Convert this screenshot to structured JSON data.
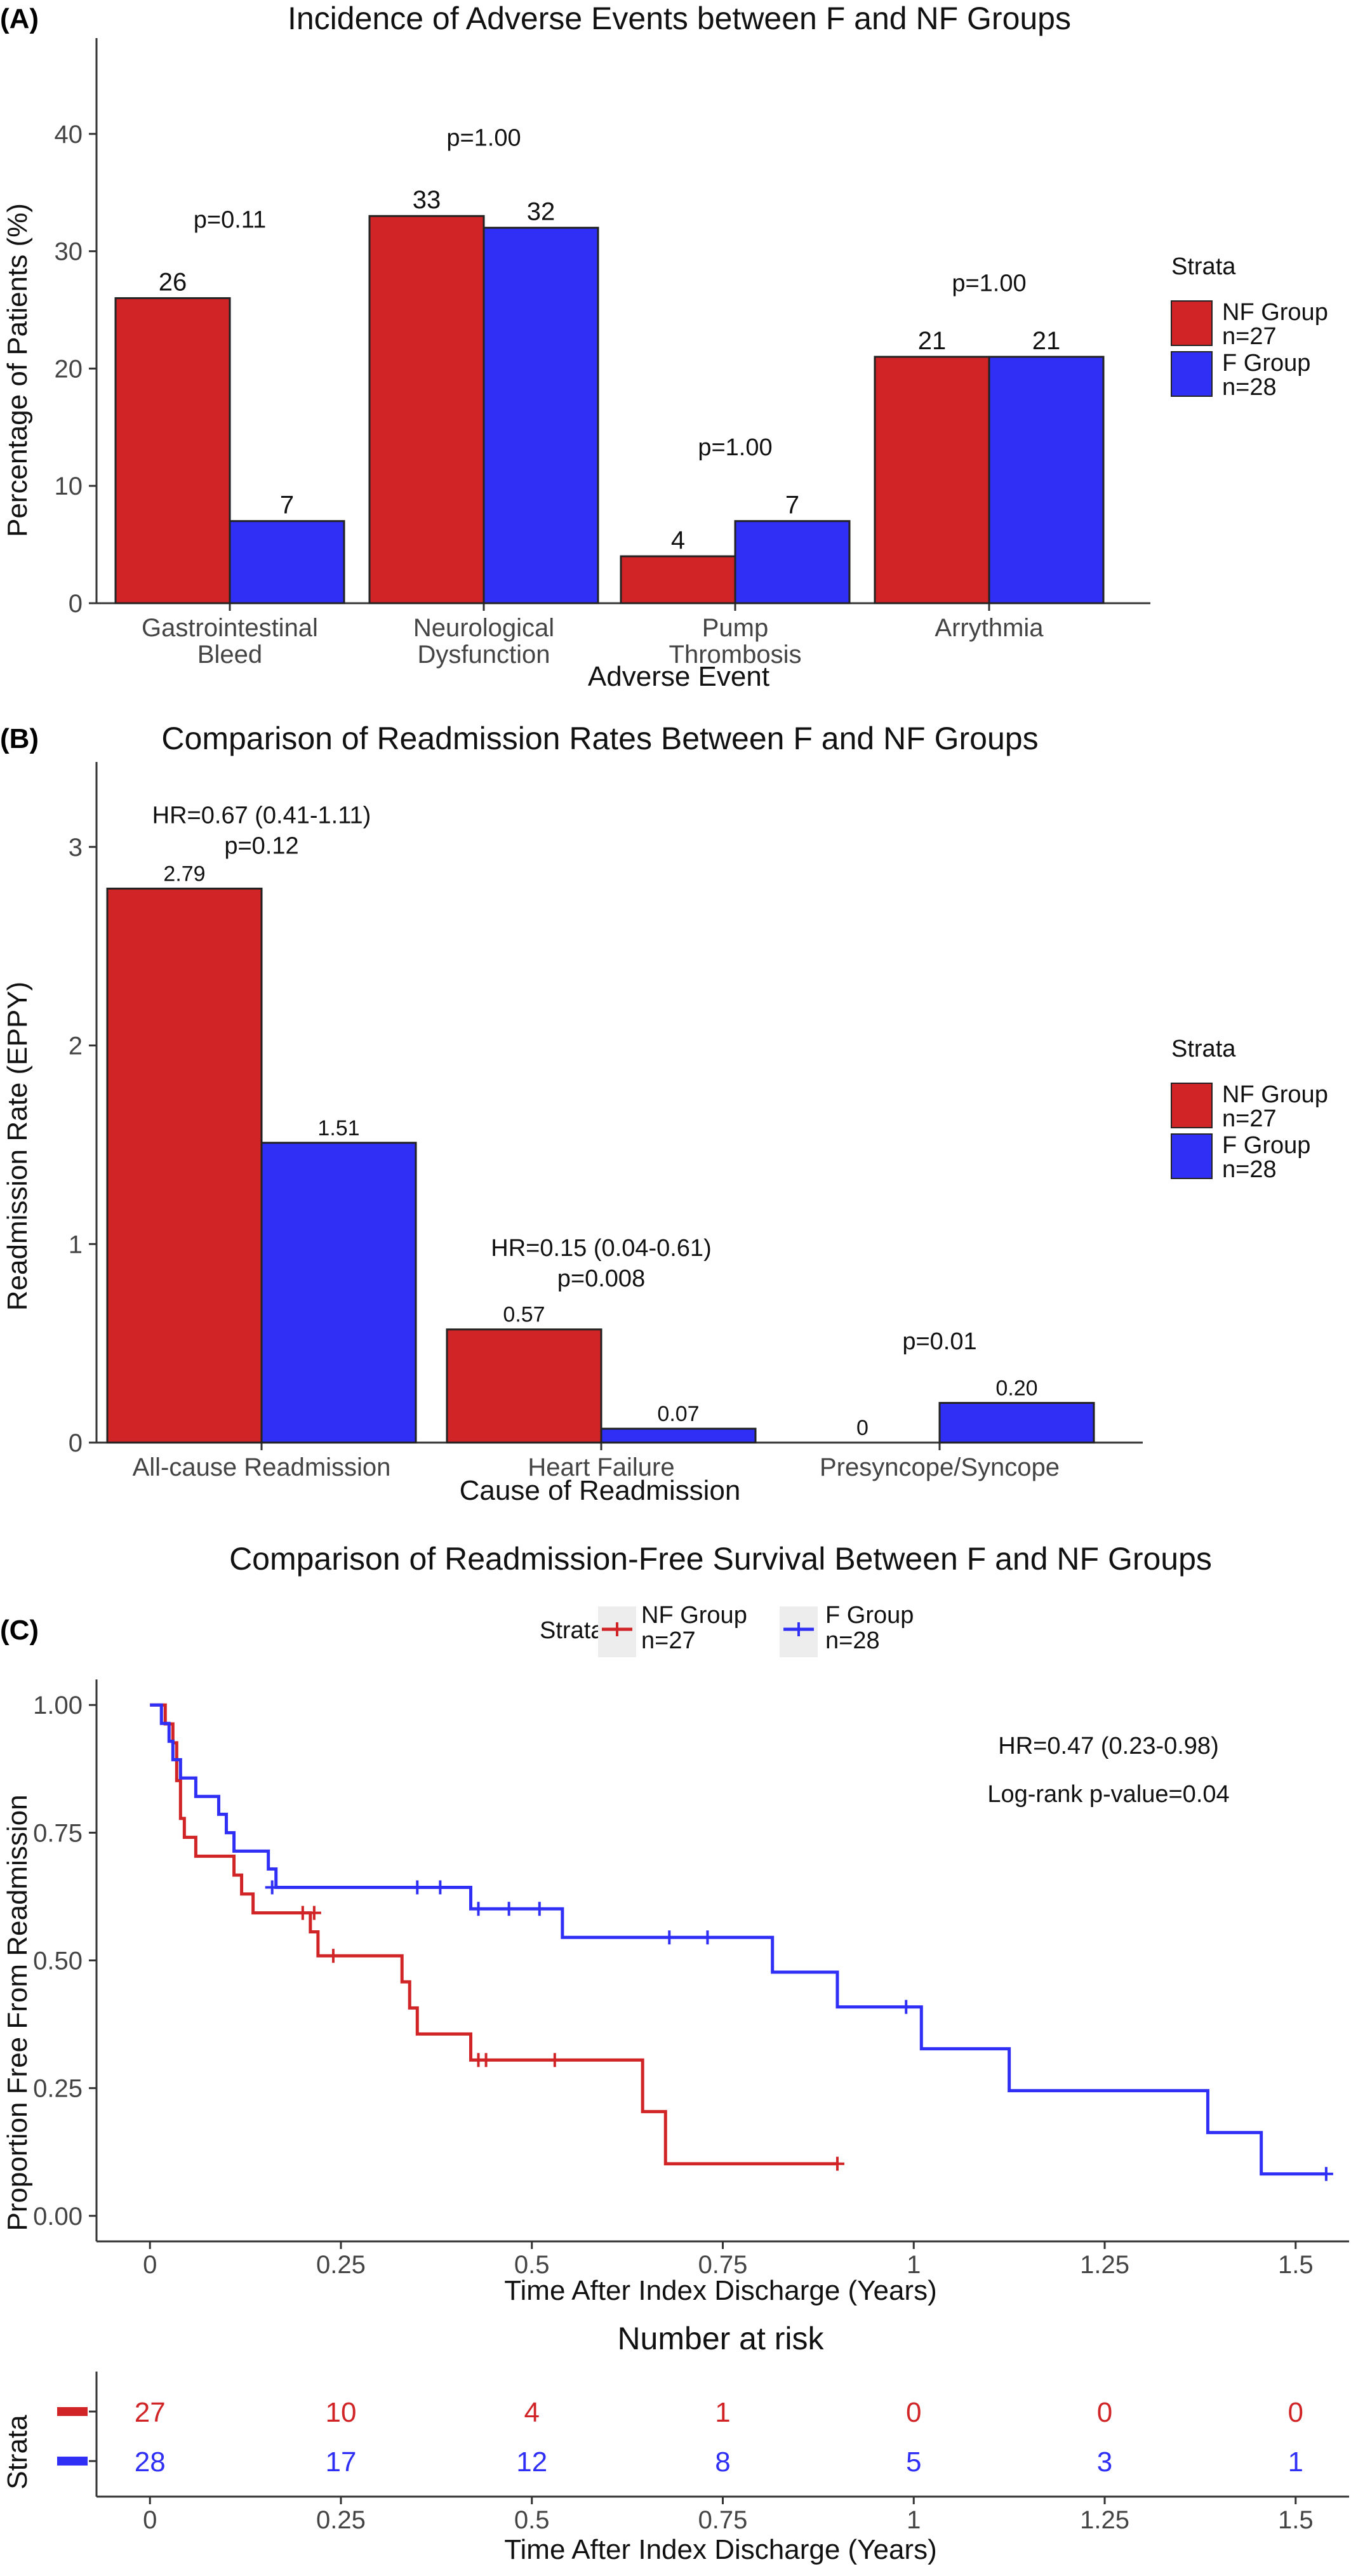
{
  "chart_data": [
    {
      "panel": "(A)",
      "type": "bar",
      "title": "Incidence of Adverse Events between F and NF Groups",
      "xlabel": "Adverse Event",
      "ylabel": "Percentage of Patients (%)",
      "ylim": [
        0,
        46
      ],
      "yticks": [
        0,
        10,
        20,
        30,
        40
      ],
      "categories": [
        [
          "Gastrointestinal",
          "Bleed"
        ],
        [
          "Neurological",
          "Dysfunction"
        ],
        [
          "Pump",
          "Thrombosis"
        ],
        [
          "Arrythmia"
        ]
      ],
      "series": [
        {
          "name": "NF Group\nn=27",
          "color": "#d02426",
          "values": [
            26,
            33,
            4,
            21
          ]
        },
        {
          "name": "F Group\nn=28",
          "color": "#2f2ff5",
          "values": [
            7,
            32,
            7,
            21
          ]
        }
      ],
      "value_labels": [
        [
          "26",
          "33",
          "4",
          "21"
        ],
        [
          "7",
          "32",
          "7",
          "21"
        ]
      ],
      "annotations": [
        {
          "category": 0,
          "lines": [
            "p=0.11"
          ],
          "y": 32
        },
        {
          "category": 1,
          "lines": [
            "p=1.00"
          ],
          "y": 39
        },
        {
          "category": 2,
          "lines": [
            "p=1.00"
          ],
          "y": 12.6
        },
        {
          "category": 3,
          "lines": [
            "p=1.00"
          ],
          "y": 26.6
        }
      ],
      "legend_title": "Strata",
      "legend_position": "right",
      "grid": false
    },
    {
      "panel": "(B)",
      "type": "bar",
      "title": "Comparison of Readmission Rates Between F and NF Groups",
      "xlabel": "Cause of Readmission",
      "ylabel": "Readmission Rate (EPPY)",
      "ylim": [
        0,
        3.3
      ],
      "yticks": [
        0,
        1,
        2,
        3
      ],
      "categories": [
        [
          "All-cause Readmission"
        ],
        [
          "Heart Failure"
        ],
        [
          "Presyncope/Syncope"
        ]
      ],
      "series": [
        {
          "name": "NF Group\nn=27",
          "color": "#d02426",
          "values": [
            2.79,
            0.57,
            0
          ]
        },
        {
          "name": "F Group\nn=28",
          "color": "#2f2ff5",
          "values": [
            1.51,
            0.07,
            0.2
          ]
        }
      ],
      "value_labels": [
        [
          "2.79",
          "0.57",
          "0"
        ],
        [
          "1.51",
          "0.07",
          "0.20"
        ]
      ],
      "annotations": [
        {
          "category": 0,
          "lines": [
            "HR=0.67 (0.41-1.11)",
            "p=0.12"
          ],
          "y": 3.12
        },
        {
          "category": 1,
          "lines": [
            "HR=0.15 (0.04-0.61)",
            "p=0.008"
          ],
          "y": 0.94
        },
        {
          "category": 2,
          "lines": [
            "p=0.01"
          ],
          "y": 0.47
        }
      ],
      "legend_title": "Strata",
      "legend_position": "right",
      "grid": false
    },
    {
      "panel": "(C)",
      "type": "line",
      "subtype": "kaplan-meier",
      "title": "Comparison of Readmission-Free Survival Between F and NF Groups",
      "xlabel": "Time After Index Discharge (Years)",
      "ylabel": "Proportion Free From Readmission",
      "xlim": [
        -0.07,
        1.57
      ],
      "ylim": [
        -0.05,
        1.05
      ],
      "xticks": [
        0,
        0.25,
        0.5,
        0.75,
        1,
        1.25,
        1.5
      ],
      "xtick_labels": [
        "0",
        "0.25",
        "0.5",
        "0.75",
        "1",
        "1.25",
        "1.5"
      ],
      "yticks": [
        0,
        0.25,
        0.5,
        0.75,
        1
      ],
      "ytick_labels": [
        "0.00",
        "0.25",
        "0.50",
        "0.75",
        "1.00"
      ],
      "legend_title": "Strata",
      "legend_position": "top",
      "annotations": [
        "HR=0.47 (0.23-0.98)",
        "Log-rank p-value=0.04"
      ],
      "series": [
        {
          "name": "NF Group\nn=27",
          "color": "#d02426",
          "steps": [
            [
              0,
              1.0
            ],
            [
              0.02,
              0.963
            ],
            [
              0.03,
              0.926
            ],
            [
              0.035,
              0.852
            ],
            [
              0.04,
              0.778
            ],
            [
              0.045,
              0.741
            ],
            [
              0.06,
              0.704
            ],
            [
              0.11,
              0.667
            ],
            [
              0.12,
              0.63
            ],
            [
              0.135,
              0.593
            ],
            [
              0.21,
              0.556
            ],
            [
              0.22,
              0.509
            ],
            [
              0.33,
              0.458
            ],
            [
              0.34,
              0.407
            ],
            [
              0.35,
              0.356
            ],
            [
              0.42,
              0.305
            ],
            [
              0.645,
              0.204
            ],
            [
              0.675,
              0.102
            ],
            [
              0.9,
              0.102
            ]
          ],
          "censored": [
            [
              0.2,
              0.593
            ],
            [
              0.215,
              0.593
            ],
            [
              0.24,
              0.509
            ],
            [
              0.43,
              0.305
            ],
            [
              0.44,
              0.305
            ],
            [
              0.53,
              0.305
            ],
            [
              0.9,
              0.102
            ]
          ]
        },
        {
          "name": "F Group\nn=28",
          "color": "#2f2ff5",
          "steps": [
            [
              0,
              1.0
            ],
            [
              0.015,
              0.964
            ],
            [
              0.025,
              0.929
            ],
            [
              0.03,
              0.893
            ],
            [
              0.04,
              0.857
            ],
            [
              0.06,
              0.821
            ],
            [
              0.09,
              0.786
            ],
            [
              0.1,
              0.75
            ],
            [
              0.11,
              0.714
            ],
            [
              0.155,
              0.679
            ],
            [
              0.165,
              0.643
            ],
            [
              0.42,
              0.601
            ],
            [
              0.54,
              0.545
            ],
            [
              0.815,
              0.477
            ],
            [
              0.9,
              0.409
            ],
            [
              1.01,
              0.327
            ],
            [
              1.125,
              0.245
            ],
            [
              1.385,
              0.163
            ],
            [
              1.455,
              0.082
            ],
            [
              1.54,
              0.082
            ]
          ],
          "censored": [
            [
              0.16,
              0.643
            ],
            [
              0.35,
              0.643
            ],
            [
              0.38,
              0.643
            ],
            [
              0.43,
              0.601
            ],
            [
              0.47,
              0.601
            ],
            [
              0.51,
              0.601
            ],
            [
              0.68,
              0.545
            ],
            [
              0.73,
              0.545
            ],
            [
              0.99,
              0.409
            ],
            [
              1.54,
              0.082
            ]
          ]
        }
      ]
    },
    {
      "type": "table",
      "title": "Number at risk",
      "ylabel": "Strata",
      "xlabel": "Time After Index Discharge (Years)",
      "times": [
        0,
        0.25,
        0.5,
        0.75,
        1,
        1.25,
        1.5
      ],
      "time_labels": [
        "0",
        "0.25",
        "0.5",
        "0.75",
        "1",
        "1.25",
        "1.5"
      ],
      "rows": [
        {
          "color": "#d02426",
          "values": [
            "27",
            "10",
            "4",
            "1",
            "0",
            "0",
            "0"
          ]
        },
        {
          "color": "#2f2ff5",
          "values": [
            "28",
            "17",
            "12",
            "8",
            "5",
            "3",
            "1"
          ]
        }
      ]
    }
  ]
}
